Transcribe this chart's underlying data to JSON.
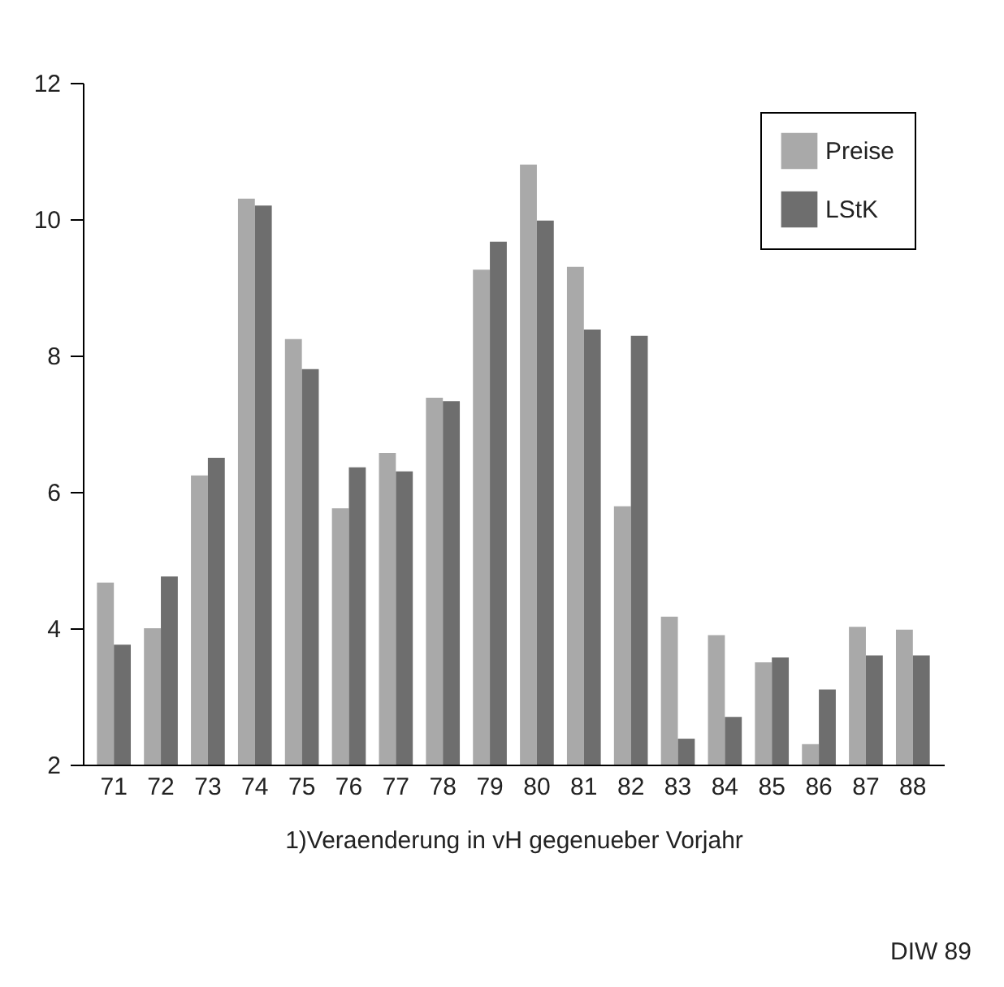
{
  "chart_data": {
    "type": "bar",
    "categories": [
      "71",
      "72",
      "73",
      "74",
      "75",
      "76",
      "77",
      "78",
      "79",
      "80",
      "81",
      "82",
      "83",
      "84",
      "85",
      "86",
      "87",
      "88"
    ],
    "series": [
      {
        "name": "Preise",
        "color": "#a9a9a9",
        "values": [
          4.67,
          4.0,
          6.24,
          10.3,
          8.24,
          5.76,
          6.57,
          7.38,
          9.26,
          10.8,
          9.3,
          5.79,
          4.17,
          3.9,
          3.5,
          2.3,
          4.02,
          3.98
        ]
      },
      {
        "name": "LStK",
        "color": "#6e6e6e",
        "values": [
          3.76,
          4.76,
          6.5,
          10.2,
          7.8,
          6.36,
          6.3,
          7.33,
          9.67,
          9.98,
          8.38,
          8.29,
          2.38,
          2.7,
          3.57,
          3.1,
          3.6,
          3.6
        ]
      }
    ],
    "xlabel": "1)Veraenderung in vH gegenueber Vorjahr",
    "ylim": [
      2,
      12
    ],
    "yticks": [
      2,
      4,
      6,
      8,
      10,
      12
    ],
    "grid": false,
    "legend": "top right",
    "annotations": [
      "DIW 89"
    ]
  }
}
